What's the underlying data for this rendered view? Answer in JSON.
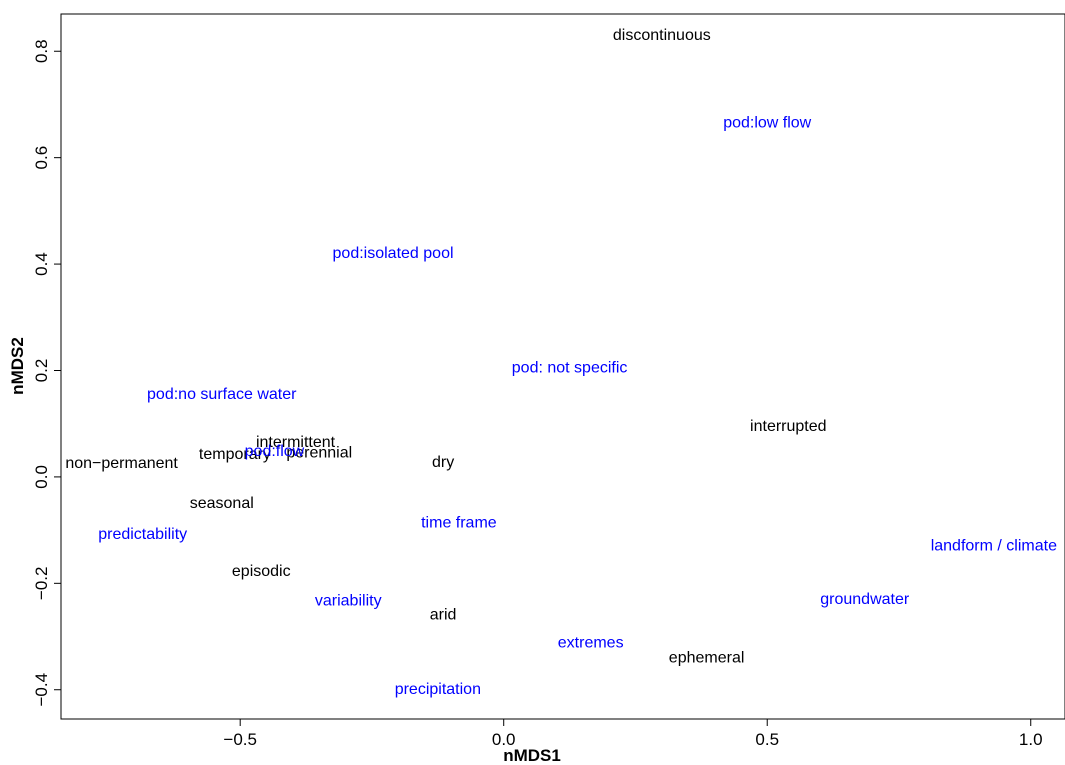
{
  "chart_data": {
    "type": "scatter",
    "title": "",
    "xlabel": "nMDS1",
    "ylabel": "nMDS2",
    "xlim": [
      -0.84,
      1.065
    ],
    "ylim": [
      -0.455,
      0.87
    ],
    "x_ticks": [
      -0.5,
      0.0,
      0.5,
      1.0
    ],
    "x_tick_labels": [
      "−0.5",
      "0.0",
      "0.5",
      "1.0"
    ],
    "y_ticks": [
      -0.4,
      -0.2,
      0.0,
      0.2,
      0.4,
      0.6,
      0.8
    ],
    "y_tick_labels": [
      "−0.4",
      "−0.2",
      "0.0",
      "0.2",
      "0.4",
      "0.6",
      "0.8"
    ],
    "grid": false,
    "colors": {
      "term": "#000000",
      "attribute": "#0000ff"
    },
    "points": [
      {
        "label": "discontinuous",
        "x": 0.3,
        "y": 0.83,
        "group": "term"
      },
      {
        "label": "pod:low flow",
        "x": 0.5,
        "y": 0.665,
        "group": "attribute"
      },
      {
        "label": "pod:isolated pool",
        "x": -0.21,
        "y": 0.42,
        "group": "attribute"
      },
      {
        "label": "pod: not specific",
        "x": 0.125,
        "y": 0.205,
        "group": "attribute"
      },
      {
        "label": "pod:no surface water",
        "x": -0.535,
        "y": 0.155,
        "group": "attribute"
      },
      {
        "label": "interrupted",
        "x": 0.54,
        "y": 0.095,
        "group": "term"
      },
      {
        "label": "intermittent",
        "x": -0.395,
        "y": 0.065,
        "group": "term"
      },
      {
        "label": "perennial",
        "x": -0.35,
        "y": 0.045,
        "group": "term"
      },
      {
        "label": "temporary",
        "x": -0.51,
        "y": 0.042,
        "group": "term"
      },
      {
        "label": "pod:flow",
        "x": -0.435,
        "y": 0.048,
        "group": "attribute"
      },
      {
        "label": "non−permanent",
        "x": -0.725,
        "y": 0.025,
        "group": "term"
      },
      {
        "label": "dry",
        "x": -0.115,
        "y": 0.027,
        "group": "term"
      },
      {
        "label": "seasonal",
        "x": -0.535,
        "y": -0.05,
        "group": "term"
      },
      {
        "label": "time frame",
        "x": -0.085,
        "y": -0.087,
        "group": "attribute"
      },
      {
        "label": "predictability",
        "x": -0.685,
        "y": -0.108,
        "group": "attribute"
      },
      {
        "label": "landform / climate",
        "x": 0.93,
        "y": -0.13,
        "group": "attribute"
      },
      {
        "label": "episodic",
        "x": -0.46,
        "y": -0.178,
        "group": "term"
      },
      {
        "label": "groundwater",
        "x": 0.685,
        "y": -0.23,
        "group": "attribute"
      },
      {
        "label": "variability",
        "x": -0.295,
        "y": -0.233,
        "group": "attribute"
      },
      {
        "label": "arid",
        "x": -0.115,
        "y": -0.26,
        "group": "term"
      },
      {
        "label": "extremes",
        "x": 0.165,
        "y": -0.312,
        "group": "attribute"
      },
      {
        "label": "ephemeral",
        "x": 0.385,
        "y": -0.34,
        "group": "term"
      },
      {
        "label": "precipitation",
        "x": -0.125,
        "y": -0.4,
        "group": "attribute"
      }
    ]
  }
}
